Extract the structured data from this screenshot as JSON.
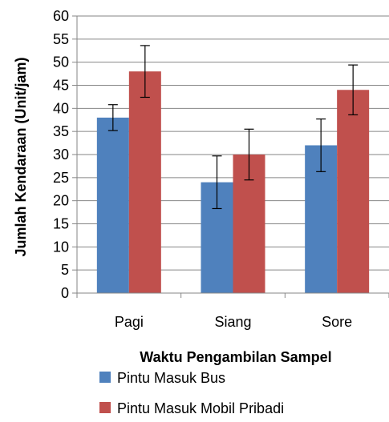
{
  "chart_data": {
    "type": "bar",
    "categories": [
      "Pagi",
      "Siang",
      "Sore"
    ],
    "series": [
      {
        "name": "Pintu Masuk Bus",
        "values": [
          38,
          24,
          32
        ],
        "errors": [
          2.8,
          5.7,
          5.7
        ],
        "color": "#4f81bd"
      },
      {
        "name": "Pintu Masuk Mobil Pribadi",
        "values": [
          48,
          30,
          44
        ],
        "errors": [
          5.6,
          5.5,
          5.4
        ],
        "color": "#c0504d"
      }
    ],
    "title": "",
    "xlabel": "Waktu Pengambilan Sampel",
    "ylabel": "Jumlah Kendaraan (Unit/jam)",
    "ylim": [
      0,
      60
    ],
    "yticks": [
      "0",
      "5",
      "10",
      "15",
      "20",
      "25",
      "30",
      "35",
      "40",
      "45",
      "50",
      "55",
      "60"
    ],
    "grid": true,
    "legend_position": "bottom"
  }
}
